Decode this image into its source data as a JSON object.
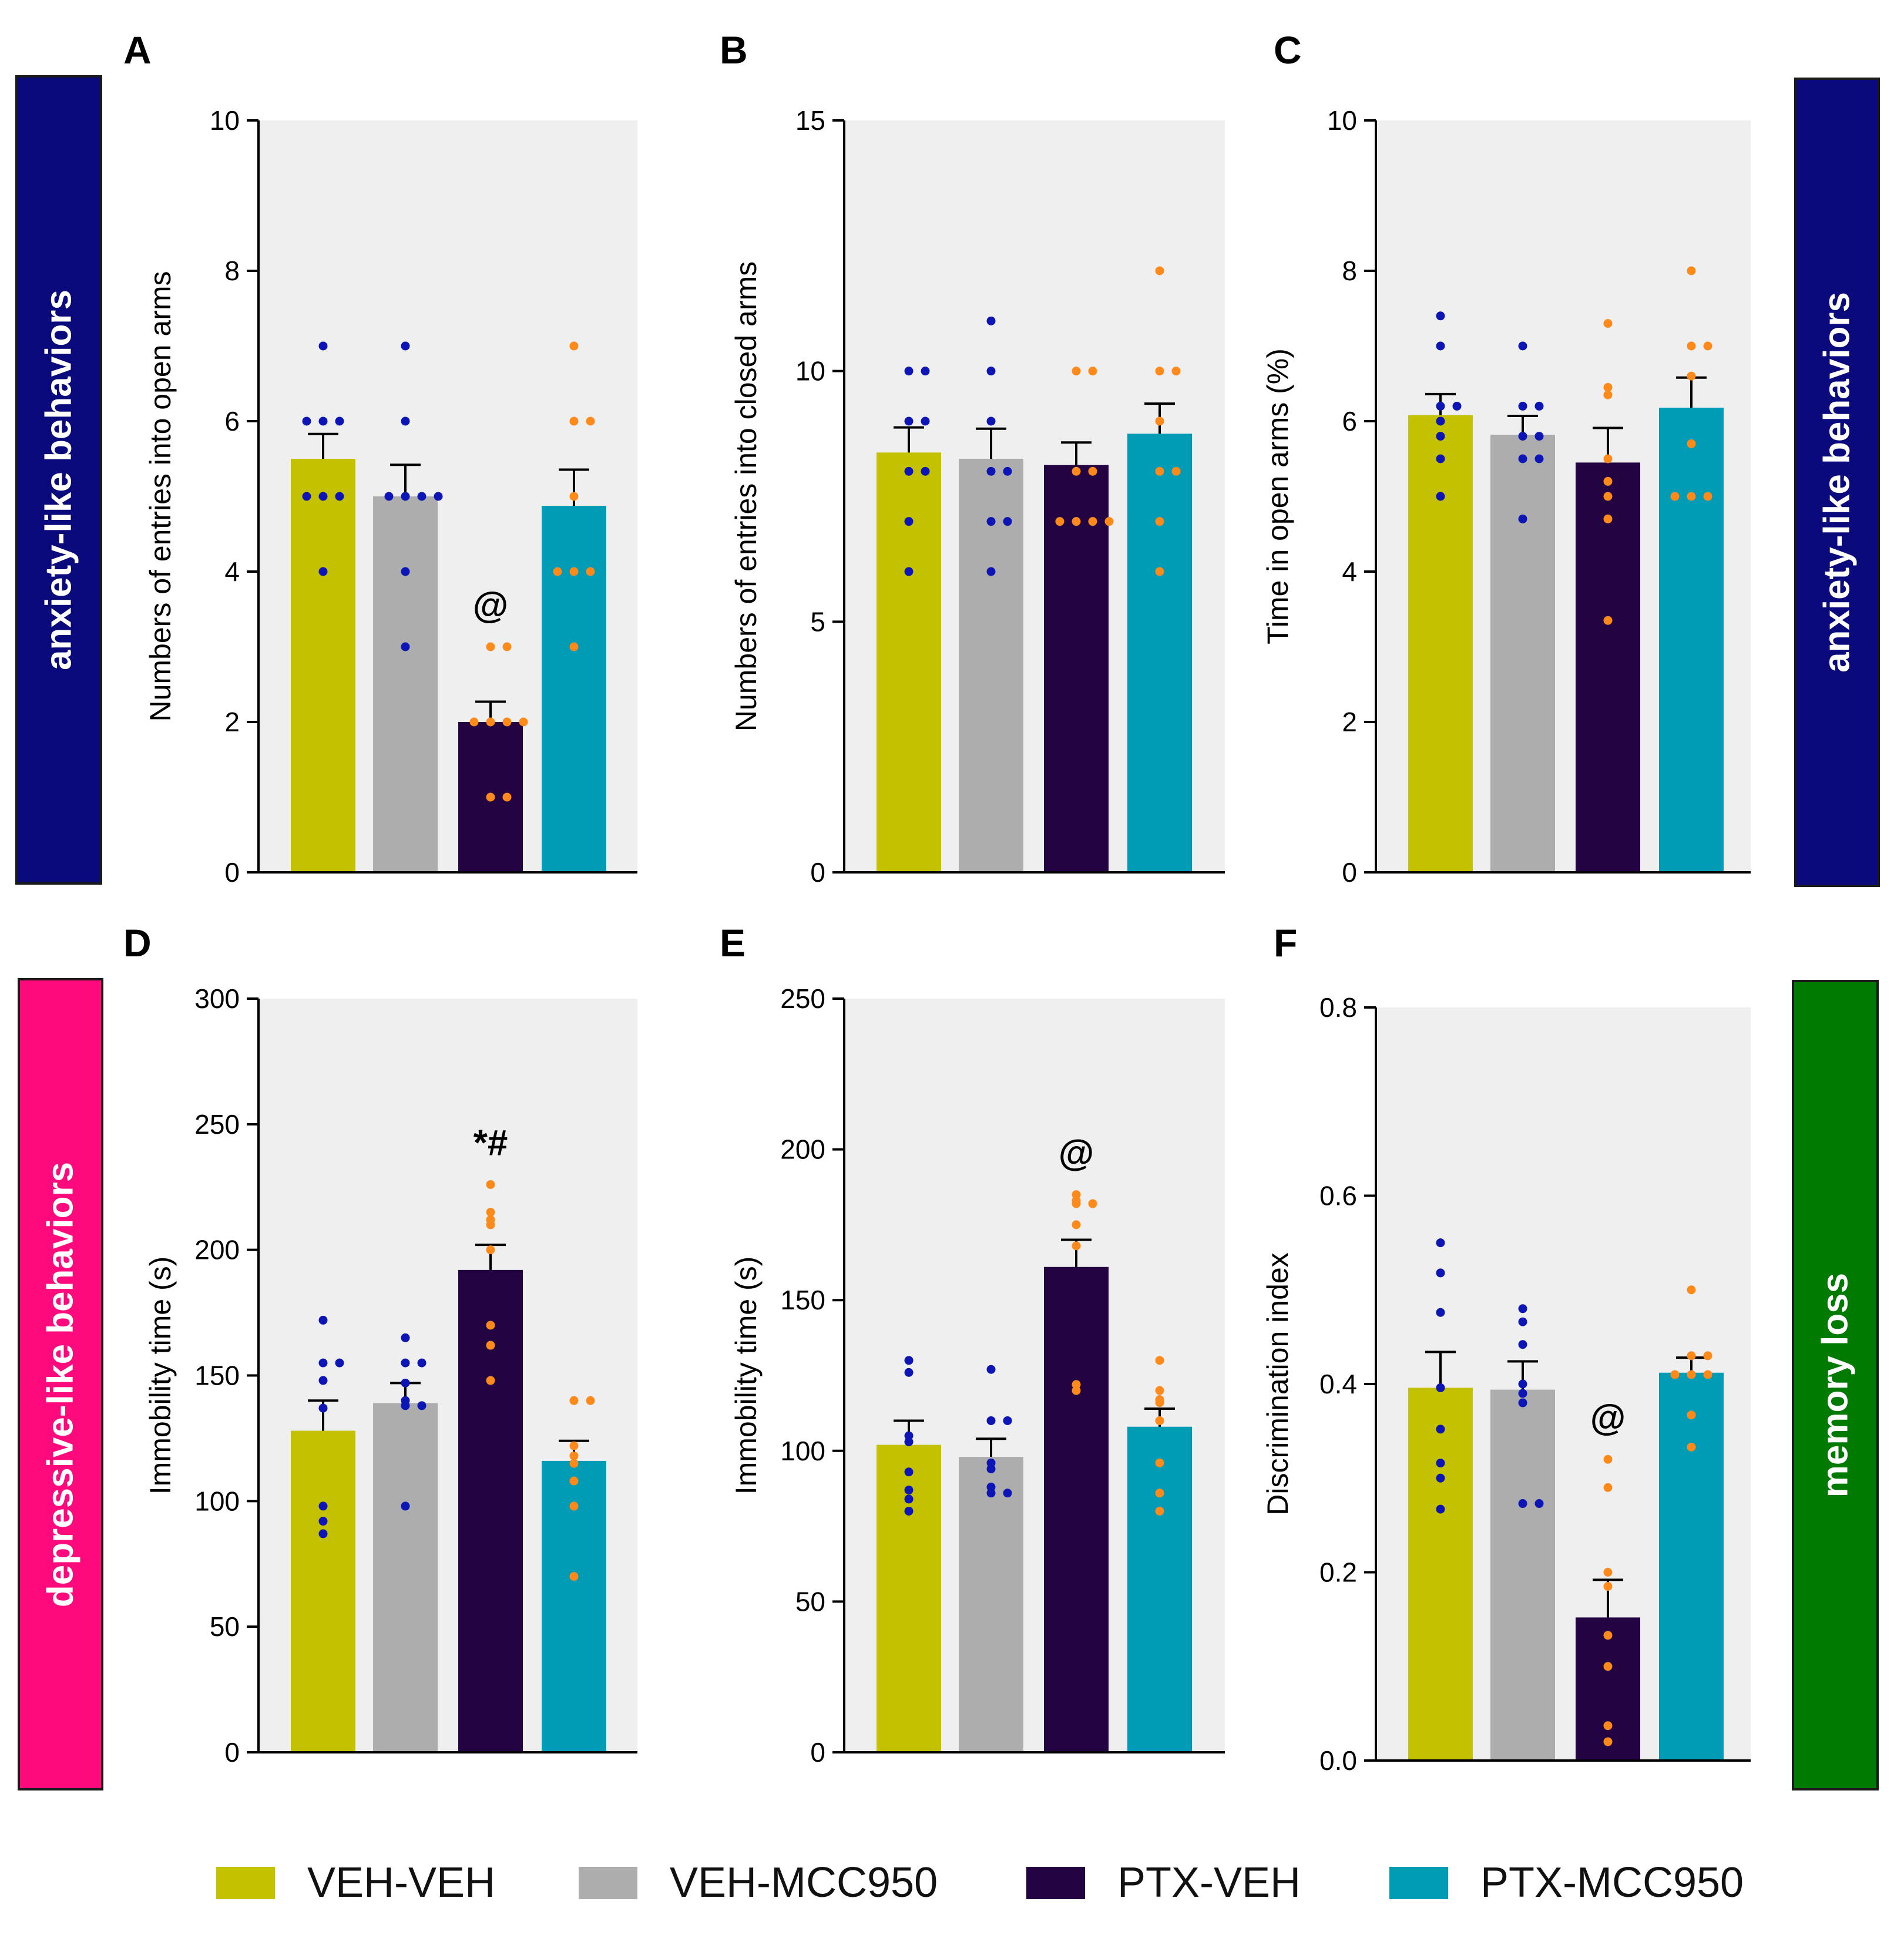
{
  "groups": [
    "VEH-VEH",
    "VEH-MCC950",
    "PTX-VEH",
    "PTX-MCC950"
  ],
  "colors": {
    "bar_fills": [
      "#c3c100",
      "#adadad",
      "#240342",
      "#009bb4"
    ],
    "dots_veh": "#0d15b5",
    "dots_ptx": "#ff8a1c",
    "plot_bg": "#efefef",
    "side_anxiety": "#0a0a7c",
    "side_depressive": "#ff0a7d",
    "side_memory": "#007a00"
  },
  "side_labels": {
    "left_top": "anxiety-like behaviors",
    "right_top": "anxiety-like behaviors",
    "left_bottom": "depressive-like behaviors",
    "right_bottom": "memory loss"
  },
  "chart_data": [
    {
      "panel": "A",
      "type": "bar",
      "categories": [
        "VEH-VEH",
        "VEH-MCC950",
        "PTX-VEH",
        "PTX-MCC950"
      ],
      "ylabel": "Numbers of entries into open arms",
      "ylim": [
        0,
        10
      ],
      "yticks": [
        0,
        2,
        4,
        6,
        8,
        10
      ],
      "values": [
        5.5,
        5.0,
        2.0,
        4.875
      ],
      "sem": [
        0.33,
        0.42,
        0.27,
        0.48
      ],
      "points": [
        [
          4,
          5,
          5,
          5,
          6,
          6,
          6,
          7
        ],
        [
          3,
          4,
          5,
          5,
          5,
          5,
          6,
          7
        ],
        [
          1,
          1,
          2,
          2,
          2,
          2,
          3,
          3
        ],
        [
          3,
          4,
          4,
          4,
          5,
          6,
          6,
          7
        ]
      ],
      "annotations": [
        {
          "group": 2,
          "text": "@"
        }
      ]
    },
    {
      "panel": "B",
      "type": "bar",
      "categories": [
        "VEH-VEH",
        "VEH-MCC950",
        "PTX-VEH",
        "PTX-MCC950"
      ],
      "ylabel": "Numbers of entries into closed arms",
      "ylim": [
        0,
        15
      ],
      "yticks": [
        0,
        5,
        10,
        15
      ],
      "values": [
        8.375,
        8.25,
        8.125,
        8.75
      ],
      "sem": [
        0.5,
        0.6,
        0.45,
        0.6
      ],
      "points": [
        [
          6,
          7,
          8,
          8,
          9,
          9,
          10,
          10
        ],
        [
          6,
          7,
          7,
          8,
          8,
          9,
          10,
          11
        ],
        [
          7,
          7,
          7,
          7,
          8,
          8,
          10,
          10
        ],
        [
          6,
          7,
          8,
          8,
          9,
          10,
          10,
          12
        ]
      ],
      "annotations": []
    },
    {
      "panel": "C",
      "type": "bar",
      "categories": [
        "VEH-VEH",
        "VEH-MCC950",
        "PTX-VEH",
        "PTX-MCC950"
      ],
      "ylabel": "Time in open arms (%)",
      "ylim": [
        0,
        10
      ],
      "yticks": [
        0,
        2,
        4,
        6,
        8,
        10
      ],
      "values": [
        6.08,
        5.82,
        5.45,
        6.18
      ],
      "sem": [
        0.28,
        0.25,
        0.46,
        0.4
      ],
      "points": [
        [
          5.0,
          5.5,
          5.8,
          6.0,
          6.2,
          6.2,
          7.0,
          7.4
        ],
        [
          4.7,
          5.5,
          5.5,
          5.8,
          6.2,
          6.2,
          7.0,
          5.8
        ],
        [
          3.35,
          4.7,
          5.0,
          5.5,
          6.35,
          6.45,
          7.3,
          5.2
        ],
        [
          5.0,
          5.0,
          5.0,
          5.7,
          6.6,
          7.0,
          7.0,
          8.0
        ]
      ],
      "annotations": []
    },
    {
      "panel": "D",
      "type": "bar",
      "categories": [
        "VEH-VEH",
        "VEH-MCC950",
        "PTX-VEH",
        "PTX-MCC950"
      ],
      "ylabel": "Immobility time (s)",
      "ylim": [
        0,
        300
      ],
      "yticks": [
        0,
        50,
        100,
        150,
        200,
        250,
        300
      ],
      "values": [
        128,
        139,
        192,
        116
      ],
      "sem": [
        12,
        8,
        10,
        8
      ],
      "points": [
        [
          87,
          92,
          98,
          137,
          148,
          155,
          155,
          172
        ],
        [
          98,
          138,
          138,
          140,
          155,
          155,
          165,
          147
        ],
        [
          148,
          162,
          170,
          200,
          210,
          212,
          215,
          226
        ],
        [
          70,
          98,
          108,
          115,
          118,
          122,
          140,
          140
        ]
      ],
      "annotations": [
        {
          "group": 2,
          "text": "*#"
        }
      ]
    },
    {
      "panel": "E",
      "type": "bar",
      "categories": [
        "VEH-VEH",
        "VEH-MCC950",
        "PTX-VEH",
        "PTX-MCC950"
      ],
      "ylabel": "Immobility time (s)",
      "ylim": [
        0,
        250
      ],
      "yticks": [
        0,
        50,
        100,
        150,
        200,
        250
      ],
      "values": [
        102,
        98,
        161,
        108
      ],
      "sem": [
        8,
        6,
        9,
        6
      ],
      "points": [
        [
          80,
          84,
          87,
          93,
          103,
          105,
          126,
          130
        ],
        [
          86,
          86,
          88,
          94,
          110,
          110,
          127,
          96
        ],
        [
          120,
          122,
          168,
          175,
          182,
          183,
          185,
          182
        ],
        [
          80,
          86,
          96,
          110,
          116,
          117,
          120,
          130
        ]
      ],
      "annotations": [
        {
          "group": 2,
          "text": "@"
        }
      ]
    },
    {
      "panel": "F",
      "type": "bar",
      "categories": [
        "VEH-VEH",
        "VEH-MCC950",
        "PTX-VEH",
        "PTX-MCC950"
      ],
      "ylabel": "Discrimination index",
      "ylim": [
        0.0,
        0.8
      ],
      "yticks": [
        0.0,
        0.2,
        0.4,
        0.6,
        0.8
      ],
      "tickDecimals": 1,
      "values": [
        0.396,
        0.394,
        0.152,
        0.412
      ],
      "sem": [
        0.038,
        0.03,
        0.04,
        0.016
      ],
      "points": [
        [
          0.267,
          0.3,
          0.316,
          0.352,
          0.396,
          0.476,
          0.518,
          0.55
        ],
        [
          0.273,
          0.273,
          0.39,
          0.4,
          0.442,
          0.466,
          0.48,
          0.38
        ],
        [
          0.02,
          0.037,
          0.1,
          0.133,
          0.185,
          0.2,
          0.29,
          0.32
        ],
        [
          0.333,
          0.367,
          0.41,
          0.41,
          0.41,
          0.43,
          0.43,
          0.5
        ]
      ],
      "annotations": [
        {
          "group": 2,
          "text": "@"
        }
      ]
    }
  ]
}
